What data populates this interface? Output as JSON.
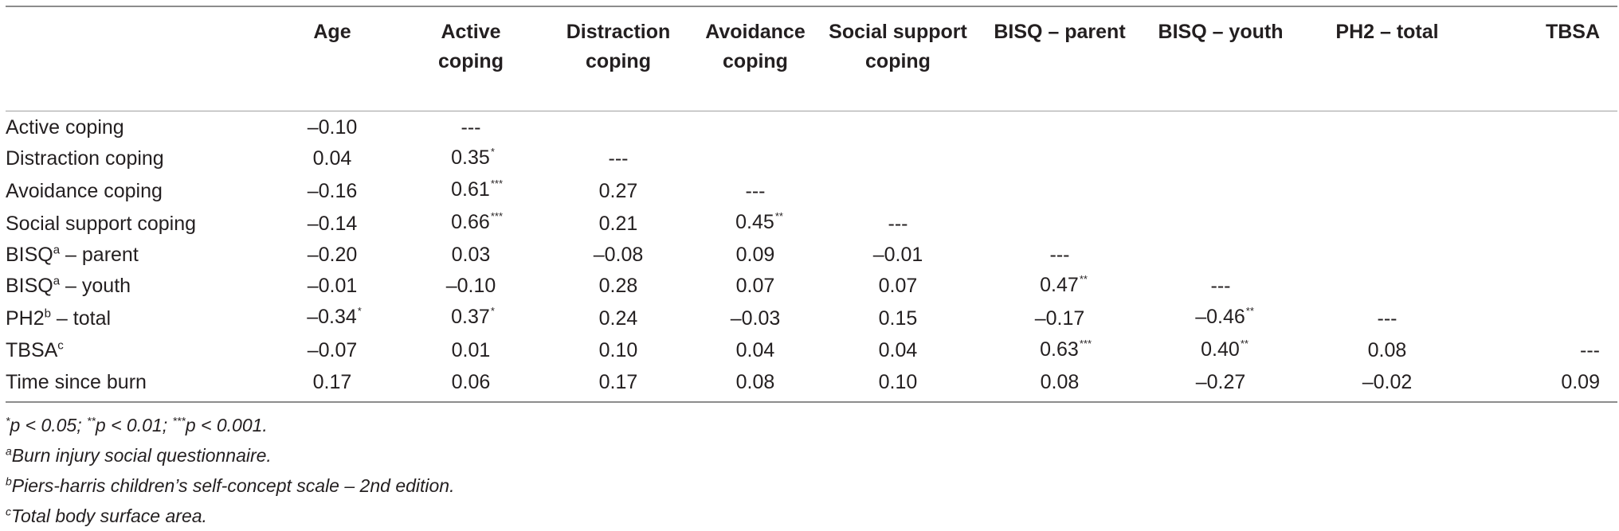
{
  "table": {
    "columns": [
      {
        "lines": "Age"
      },
      {
        "lines": "Active\ncoping"
      },
      {
        "lines": "Distraction\ncoping"
      },
      {
        "lines": "Avoidance\ncoping"
      },
      {
        "lines": "Social support\ncoping"
      },
      {
        "lines": "BISQ – parent"
      },
      {
        "lines": "BISQ – youth"
      },
      {
        "lines": "PH2 – total"
      },
      {
        "lines": "TBSA"
      }
    ],
    "rows": [
      {
        "label": "Active coping",
        "label_sup": "",
        "label_rest": "",
        "cells": [
          {
            "v": "–0.10",
            "s": ""
          },
          {
            "v": "---",
            "s": ""
          }
        ]
      },
      {
        "label": "Distraction coping",
        "label_sup": "",
        "label_rest": "",
        "cells": [
          {
            "v": "0.04",
            "s": ""
          },
          {
            "v": "0.35",
            "s": "*"
          },
          {
            "v": "---",
            "s": ""
          }
        ]
      },
      {
        "label": "Avoidance coping",
        "label_sup": "",
        "label_rest": "",
        "cells": [
          {
            "v": "–0.16",
            "s": ""
          },
          {
            "v": "0.61",
            "s": "***"
          },
          {
            "v": "0.27",
            "s": ""
          },
          {
            "v": "---",
            "s": ""
          }
        ]
      },
      {
        "label": "Social support coping",
        "label_sup": "",
        "label_rest": "",
        "cells": [
          {
            "v": "–0.14",
            "s": ""
          },
          {
            "v": "0.66",
            "s": "***"
          },
          {
            "v": "0.21",
            "s": ""
          },
          {
            "v": "0.45",
            "s": "**"
          },
          {
            "v": "---",
            "s": ""
          }
        ]
      },
      {
        "label": "BISQ",
        "label_sup": "a",
        "label_rest": " – parent",
        "cells": [
          {
            "v": "–0.20",
            "s": ""
          },
          {
            "v": "0.03",
            "s": ""
          },
          {
            "v": "–0.08",
            "s": ""
          },
          {
            "v": "0.09",
            "s": ""
          },
          {
            "v": "–0.01",
            "s": ""
          },
          {
            "v": "---",
            "s": ""
          }
        ]
      },
      {
        "label": "BISQ",
        "label_sup": "a",
        "label_rest": " – youth",
        "cells": [
          {
            "v": "–0.01",
            "s": ""
          },
          {
            "v": "–0.10",
            "s": ""
          },
          {
            "v": "0.28",
            "s": ""
          },
          {
            "v": "0.07",
            "s": ""
          },
          {
            "v": "0.07",
            "s": ""
          },
          {
            "v": "0.47",
            "s": "**"
          },
          {
            "v": "---",
            "s": ""
          }
        ]
      },
      {
        "label": "PH2",
        "label_sup": "b",
        "label_rest": " – total",
        "cells": [
          {
            "v": "–0.34",
            "s": "*"
          },
          {
            "v": "0.37",
            "s": "*"
          },
          {
            "v": "0.24",
            "s": ""
          },
          {
            "v": "–0.03",
            "s": ""
          },
          {
            "v": "0.15",
            "s": ""
          },
          {
            "v": "–0.17",
            "s": ""
          },
          {
            "v": "–0.46",
            "s": "**"
          },
          {
            "v": "---",
            "s": ""
          }
        ]
      },
      {
        "label": "TBSA",
        "label_sup": "c",
        "label_rest": "",
        "cells": [
          {
            "v": "–0.07",
            "s": ""
          },
          {
            "v": "0.01",
            "s": ""
          },
          {
            "v": "0.10",
            "s": ""
          },
          {
            "v": "0.04",
            "s": ""
          },
          {
            "v": "0.04",
            "s": ""
          },
          {
            "v": "0.63",
            "s": "***"
          },
          {
            "v": "0.40",
            "s": "**"
          },
          {
            "v": "0.08",
            "s": ""
          },
          {
            "v": "---",
            "s": ""
          }
        ]
      },
      {
        "label": "Time since burn",
        "label_sup": "",
        "label_rest": "",
        "cells": [
          {
            "v": "0.17",
            "s": ""
          },
          {
            "v": "0.06",
            "s": ""
          },
          {
            "v": "0.17",
            "s": ""
          },
          {
            "v": "0.08",
            "s": ""
          },
          {
            "v": "0.10",
            "s": ""
          },
          {
            "v": "0.08",
            "s": ""
          },
          {
            "v": "–0.27",
            "s": ""
          },
          {
            "v": "–0.02",
            "s": ""
          },
          {
            "v": "0.09",
            "s": ""
          }
        ]
      }
    ]
  },
  "notes": {
    "significance": [
      {
        "sup": "*",
        "text": "p < 0.05; "
      },
      {
        "sup": "**",
        "text": "p < 0.01; "
      },
      {
        "sup": "***",
        "text": "p < 0.001."
      }
    ],
    "footnotes": [
      {
        "sup": "a",
        "text": "Burn injury social questionnaire."
      },
      {
        "sup": "b",
        "text": "Piers-harris children’s self-concept scale – 2nd edition."
      },
      {
        "sup": "c",
        "text": "Total body surface area."
      }
    ]
  }
}
